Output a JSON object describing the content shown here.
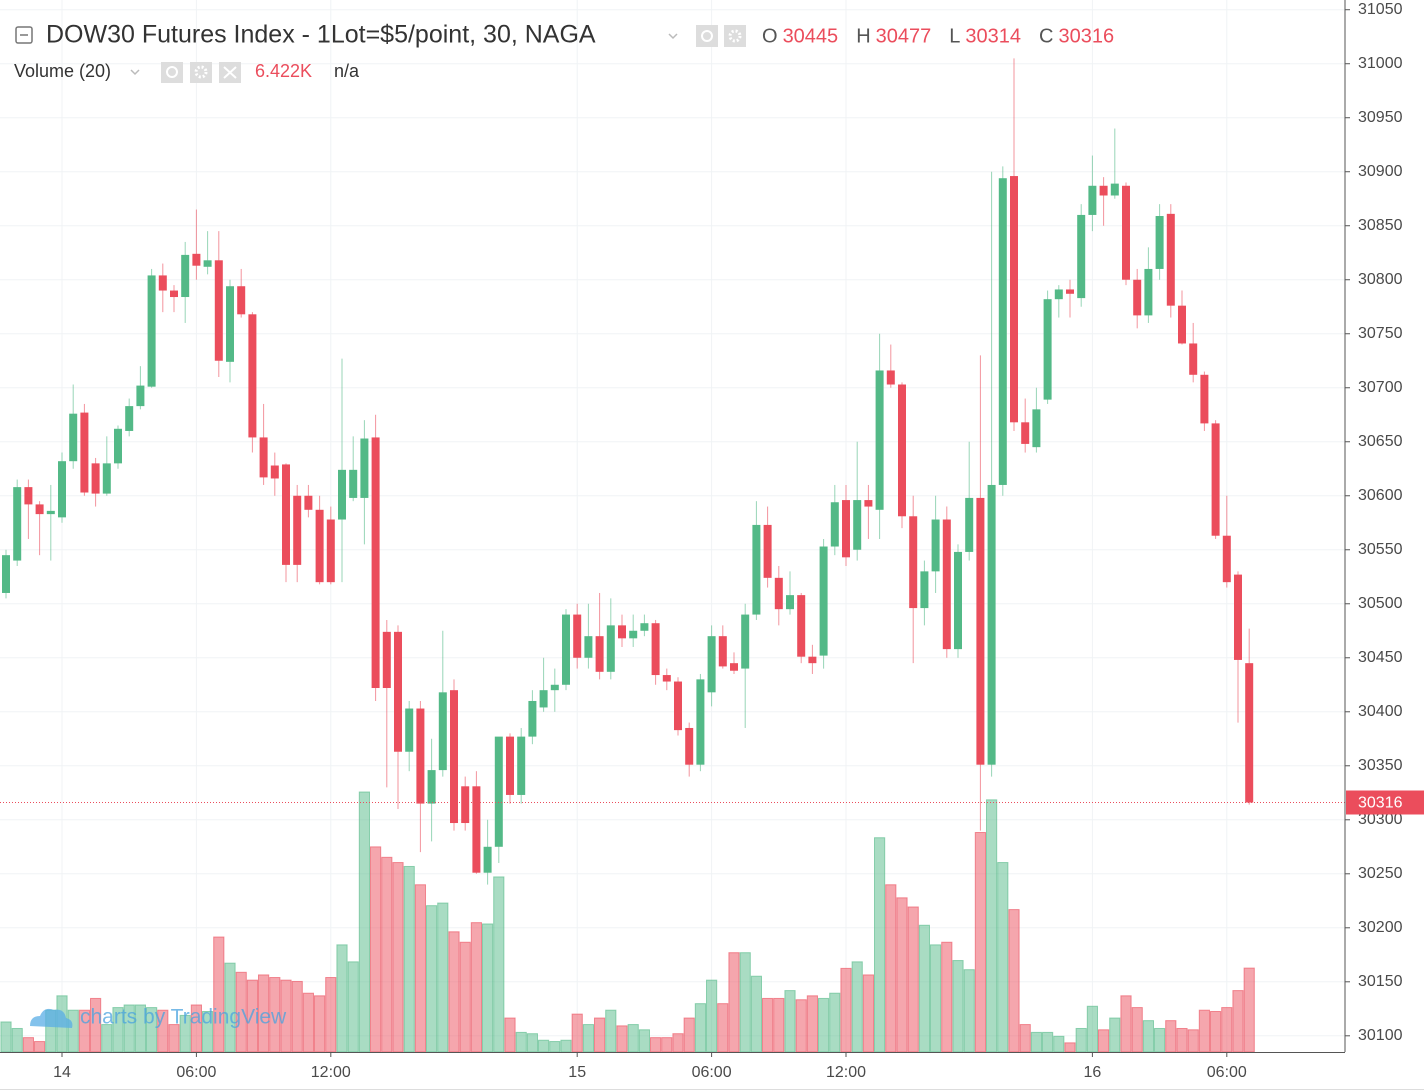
{
  "chart_data": {
    "type": "candlestick",
    "title": "DOW30 Futures Index - 1Lot=$5/point, 30, NAGA",
    "ohlc_labels": [
      "O",
      "H",
      "L",
      "C"
    ],
    "up_color": "#53b987",
    "down_color": "#eb4d5c",
    "categories": [
      null,
      null,
      null,
      null,
      null,
      "14",
      null,
      null,
      null,
      null,
      null,
      null,
      null,
      null,
      null,
      null,
      null,
      "06:00",
      null,
      null,
      null,
      null,
      null,
      null,
      null,
      null,
      null,
      null,
      null,
      "12:00",
      null,
      null,
      null,
      null,
      null,
      null,
      null,
      null,
      null,
      null,
      null,
      null,
      null,
      null,
      null,
      null,
      null,
      null,
      null,
      null,
      null,
      "15",
      null,
      null,
      null,
      null,
      null,
      null,
      null,
      null,
      null,
      null,
      null,
      "06:00",
      null,
      null,
      null,
      null,
      null,
      null,
      null,
      null,
      null,
      null,
      null,
      "12:00",
      null,
      null,
      null,
      null,
      null,
      null,
      null,
      null,
      null,
      null,
      null,
      null,
      null,
      null,
      null,
      null,
      null,
      null,
      null,
      null,
      null,
      "16",
      null,
      null,
      null,
      null,
      null,
      null,
      null,
      null,
      null,
      null,
      null,
      "06:00",
      null,
      null
    ],
    "candles": [
      [
        30510,
        30550,
        30505,
        30545
      ],
      [
        30540,
        30615,
        30535,
        30608
      ],
      [
        30608,
        30615,
        30560,
        30592
      ],
      [
        30592,
        30595,
        30545,
        30583
      ],
      [
        30583,
        30610,
        30540,
        30586
      ],
      [
        30580,
        30640,
        30575,
        30632
      ],
      [
        30632,
        30703,
        30625,
        30676
      ],
      [
        30677,
        30685,
        30600,
        30603
      ],
      [
        30630,
        30635,
        30590,
        30602
      ],
      [
        30602,
        30655,
        30600,
        30630
      ],
      [
        30630,
        30665,
        30625,
        30662
      ],
      [
        30660,
        30690,
        30655,
        30683
      ],
      [
        30683,
        30720,
        30680,
        30702
      ],
      [
        30701,
        30810,
        30700,
        30804
      ],
      [
        30804,
        30815,
        30770,
        30790
      ],
      [
        30790,
        30795,
        30770,
        30784
      ],
      [
        30784,
        30835,
        30760,
        30823
      ],
      [
        30824,
        30865,
        30800,
        30813
      ],
      [
        30812,
        30845,
        30805,
        30818
      ],
      [
        30818,
        30845,
        30710,
        30725
      ],
      [
        30724,
        30800,
        30705,
        30794
      ],
      [
        30794,
        30810,
        30765,
        30768
      ],
      [
        30768,
        30770,
        30640,
        30654
      ],
      [
        30654,
        30685,
        30610,
        30617
      ],
      [
        30628,
        30640,
        30600,
        30616
      ],
      [
        30629,
        30630,
        30520,
        30536
      ],
      [
        30600,
        30610,
        30520,
        30536
      ],
      [
        30600,
        30610,
        30580,
        30587
      ],
      [
        30587,
        30600,
        30518,
        30520
      ],
      [
        30578,
        30590,
        30518,
        30520
      ],
      [
        30578,
        30727,
        30520,
        30624
      ],
      [
        30598,
        30655,
        30595,
        30624
      ],
      [
        30598,
        30670,
        30555,
        30653
      ],
      [
        30654,
        30675,
        30410,
        30422
      ],
      [
        30474,
        30485,
        30330,
        30422
      ],
      [
        30474,
        30480,
        30310,
        30363
      ],
      [
        30363,
        30410,
        30345,
        30403
      ],
      [
        30403,
        30410,
        30270,
        30315
      ],
      [
        30315,
        30375,
        30280,
        30346
      ],
      [
        30346,
        30475,
        30340,
        30418
      ],
      [
        30420,
        30430,
        30290,
        30297
      ],
      [
        30331,
        30340,
        30290,
        30297
      ],
      [
        30331,
        30345,
        30250,
        30251
      ],
      [
        30251,
        30300,
        30240,
        30275
      ],
      [
        30275,
        30370,
        30260,
        30377
      ],
      [
        30377,
        30380,
        30315,
        30323
      ],
      [
        30323,
        30385,
        30315,
        30377
      ],
      [
        30377,
        30420,
        30370,
        30410
      ],
      [
        30404,
        30450,
        30400,
        30420
      ],
      [
        30420,
        30440,
        30400,
        30425
      ],
      [
        30425,
        30495,
        30420,
        30490
      ],
      [
        30490,
        30500,
        30440,
        30450
      ],
      [
        30450,
        30500,
        30440,
        30470
      ],
      [
        30470,
        30510,
        30430,
        30437
      ],
      [
        30437,
        30505,
        30430,
        30480
      ],
      [
        30480,
        30490,
        30460,
        30468
      ],
      [
        30468,
        30490,
        30460,
        30475
      ],
      [
        30475,
        30490,
        30470,
        30482
      ],
      [
        30482,
        30485,
        30425,
        30434
      ],
      [
        30434,
        30440,
        30420,
        30428
      ],
      [
        30428,
        30432,
        30378,
        30383
      ],
      [
        30385,
        30390,
        30340,
        30351
      ],
      [
        30351,
        30435,
        30345,
        30430
      ],
      [
        30418,
        30480,
        30405,
        30470
      ],
      [
        30470,
        30480,
        30440,
        30442
      ],
      [
        30445,
        30455,
        30435,
        30438
      ],
      [
        30440,
        30500,
        30385,
        30490
      ],
      [
        30490,
        30595,
        30485,
        30573
      ],
      [
        30573,
        30590,
        30515,
        30524
      ],
      [
        30524,
        30535,
        30480,
        30495
      ],
      [
        30495,
        30530,
        30490,
        30508
      ],
      [
        30508,
        30510,
        30445,
        30451
      ],
      [
        30451,
        30462,
        30435,
        30445
      ],
      [
        30452,
        30560,
        30440,
        30553
      ],
      [
        30553,
        30610,
        30545,
        30594
      ],
      [
        30596,
        30610,
        30535,
        30543
      ],
      [
        30550,
        30650,
        30540,
        30596
      ],
      [
        30596,
        30610,
        30560,
        30590
      ],
      [
        30587,
        30750,
        30560,
        30716
      ],
      [
        30716,
        30740,
        30700,
        30703
      ],
      [
        30703,
        30705,
        30570,
        30581
      ],
      [
        30581,
        30600,
        30445,
        30496
      ],
      [
        30496,
        30540,
        30480,
        30530
      ],
      [
        30530,
        30600,
        30510,
        30578
      ],
      [
        30578,
        30590,
        30450,
        30458
      ],
      [
        30458,
        30555,
        30450,
        30548
      ],
      [
        30548,
        30650,
        30540,
        30598
      ],
      [
        30598,
        30730,
        30290,
        30351
      ],
      [
        30351,
        30900,
        30340,
        30610
      ],
      [
        30610,
        30905,
        30600,
        30894
      ],
      [
        30896,
        31005,
        30660,
        30668
      ],
      [
        30668,
        30690,
        30640,
        30648
      ],
      [
        30645,
        30700,
        30640,
        30680
      ],
      [
        30689,
        30790,
        30685,
        30782
      ],
      [
        30782,
        30795,
        30765,
        30791
      ],
      [
        30791,
        30800,
        30765,
        30787
      ],
      [
        30783,
        30870,
        30775,
        30860
      ],
      [
        30860,
        30915,
        30845,
        30887
      ],
      [
        30887,
        30895,
        30850,
        30878
      ],
      [
        30878,
        30940,
        30875,
        30889
      ],
      [
        30887,
        30890,
        30795,
        30800
      ],
      [
        30800,
        30810,
        30755,
        30767
      ],
      [
        30767,
        30830,
        30760,
        30810
      ],
      [
        30810,
        30870,
        30800,
        30859
      ],
      [
        30861,
        30870,
        30765,
        30776
      ],
      [
        30776,
        30790,
        30740,
        30741
      ],
      [
        30741,
        30760,
        30705,
        30712
      ],
      [
        30712,
        30715,
        30660,
        30667
      ],
      [
        30667,
        30670,
        30560,
        30563
      ],
      [
        30563,
        30600,
        30515,
        30520
      ],
      [
        30527,
        30530,
        30390,
        30448
      ],
      [
        30445,
        30477,
        30314,
        30316
      ]
    ],
    "volume": {
      "name": "Volume (20)",
      "status": "n/a",
      "values": [
        2.3,
        1.8,
        1.1,
        0.8,
        3.2,
        4.3,
        3.2,
        3.2,
        4.1,
        2.1,
        3.4,
        3.6,
        3.6,
        3.4,
        3.2,
        2.1,
        2.8,
        3.6,
        3.1,
        8.8,
        6.8,
        6.1,
        5.5,
        5.9,
        5.7,
        5.5,
        5.4,
        4.5,
        4.3,
        5.7,
        8.2,
        6.9,
        19.9,
        15.7,
        14.9,
        14.5,
        14.2,
        12.8,
        11.2,
        11.4,
        9.2,
        8.4,
        9.9,
        9.8,
        13.4,
        2.6,
        1.5,
        1.4,
        0.9,
        0.8,
        0.9,
        2.9,
        2.1,
        2.6,
        3.2,
        2.0,
        2.1,
        1.7,
        1.1,
        1.1,
        1.4,
        2.6,
        3.7,
        5.5,
        3.7,
        7.6,
        7.6,
        5.8,
        4.1,
        4.1,
        4.7,
        4.0,
        4.3,
        4.1,
        4.5,
        6.4,
        6.9,
        5.9,
        16.4,
        12.8,
        11.8,
        11.1,
        9.7,
        8.2,
        8.4,
        7.0,
        6.3,
        16.8,
        19.3,
        14.5,
        10.9,
        2.1,
        1.5,
        1.5,
        1.2,
        0.7,
        1.8,
        3.5,
        1.7,
        2.6,
        4.3,
        3.4,
        2.4,
        1.8,
        2.4,
        1.8,
        1.7,
        3.2,
        3.1,
        3.4,
        4.7,
        6.422
      ],
      "value_labels": [
        null,
        null,
        null,
        null,
        null,
        null,
        null,
        null,
        null,
        null,
        null,
        null,
        null,
        null,
        null,
        null,
        null,
        null,
        null,
        null,
        null,
        null,
        null,
        null,
        null,
        null,
        null,
        null,
        null,
        null,
        null,
        null,
        null,
        null,
        null,
        null,
        null,
        null,
        null,
        null,
        null,
        null,
        null,
        null,
        null,
        null,
        null,
        null,
        null,
        null,
        null,
        null,
        null,
        null,
        null,
        null,
        null,
        null,
        null,
        null,
        null,
        null,
        null,
        null,
        null,
        null,
        null,
        null,
        null,
        null,
        null,
        null,
        null,
        null,
        null,
        null,
        null,
        null,
        null,
        null,
        null,
        null,
        null,
        null,
        null,
        null,
        null,
        null,
        null,
        null,
        null,
        null,
        null,
        null,
        null,
        null,
        null,
        null,
        null,
        null,
        null,
        null,
        null,
        null,
        null,
        null,
        null,
        null,
        null,
        null,
        null,
        "6.422K"
      ]
    },
    "ylim": [
      30085,
      31059
    ],
    "yticks": [
      30100,
      30150,
      30200,
      30250,
      30300,
      30350,
      30400,
      30450,
      30500,
      30550,
      30600,
      30650,
      30700,
      30750,
      30800,
      30850,
      30900,
      30950,
      31000,
      31050
    ],
    "grid": true,
    "watermark": "charts by TradingView"
  }
}
